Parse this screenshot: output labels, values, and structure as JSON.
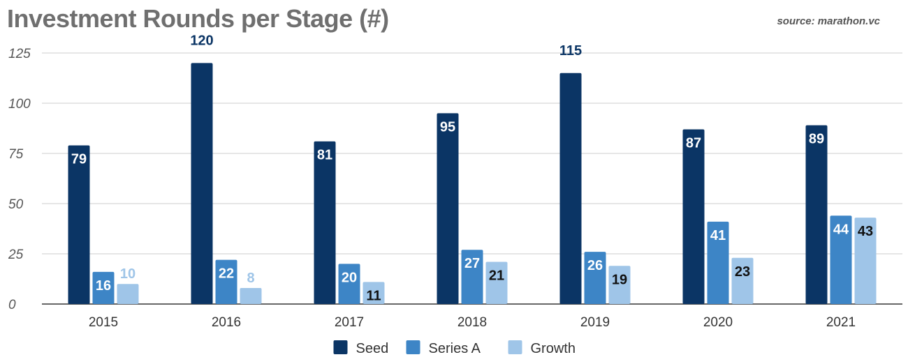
{
  "chart_data": {
    "type": "bar",
    "title": "Investment Rounds per Stage (#)",
    "source": "source: marathon.vc",
    "categories": [
      "2015",
      "2016",
      "2017",
      "2018",
      "2019",
      "2020",
      "2021"
    ],
    "series": [
      {
        "name": "Seed",
        "color": "#0b3565",
        "values": [
          79,
          120,
          81,
          95,
          115,
          87,
          89
        ]
      },
      {
        "name": "Series A",
        "color": "#3d85c6",
        "values": [
          16,
          22,
          20,
          27,
          26,
          41,
          44
        ]
      },
      {
        "name": "Growth",
        "color": "#9fc5e8",
        "values": [
          10,
          8,
          11,
          21,
          19,
          23,
          43
        ]
      }
    ],
    "ylim": [
      0,
      125
    ],
    "yticks": [
      "0",
      "25",
      "50",
      "75",
      "100",
      "125"
    ],
    "grid": true,
    "legend_position": "bottom"
  }
}
